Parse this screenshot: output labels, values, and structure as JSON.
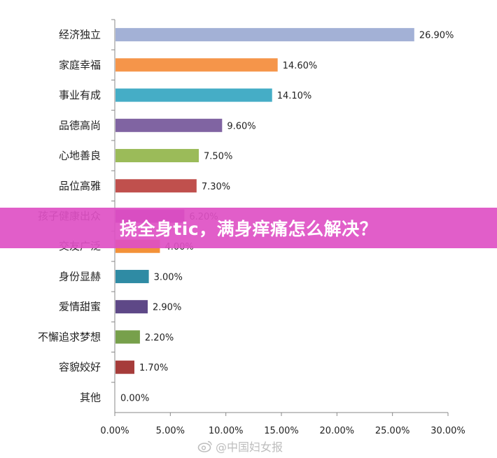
{
  "banner": {
    "text": "挠全身tic，满身痒痛怎么解决？"
  },
  "watermark": {
    "text": "@中国妇女报"
  },
  "chart_data": {
    "type": "bar",
    "orientation": "horizontal",
    "categories": [
      "经济独立",
      "家庭幸福",
      "事业有成",
      "品德高尚",
      "心地善良",
      "品位高雅",
      "孩子健康出众",
      "交友广泛",
      "身份显赫",
      "爱情甜蜜",
      "不懈追求梦想",
      "容貌姣好",
      "其他"
    ],
    "values": [
      26.9,
      14.6,
      14.1,
      9.6,
      7.5,
      7.3,
      6.2,
      4.0,
      3.0,
      2.9,
      2.2,
      1.7,
      0.0
    ],
    "value_labels": [
      "26.90%",
      "14.60%",
      "14.10%",
      "9.60%",
      "7.50%",
      "7.30%",
      "6.20%",
      "4.00%",
      "3.00%",
      "2.90%",
      "2.20%",
      "1.70%",
      "0.00%"
    ],
    "colors": [
      "#a3b1d6",
      "#f5954a",
      "#45adc6",
      "#8064a2",
      "#9bbb59",
      "#c0504d",
      "#9c3aa8",
      "#f39138",
      "#2f8ba4",
      "#5e4887",
      "#77a04b",
      "#a63c3a",
      "#cccccc"
    ],
    "xlim": [
      0,
      30
    ],
    "xticks": [
      0,
      5,
      10,
      15,
      20,
      25,
      30
    ],
    "xtick_labels": [
      "0.00%",
      "5.00%",
      "10.00%",
      "15.00%",
      "20.00%",
      "25.00%",
      "30.00%"
    ],
    "grid": false
  }
}
